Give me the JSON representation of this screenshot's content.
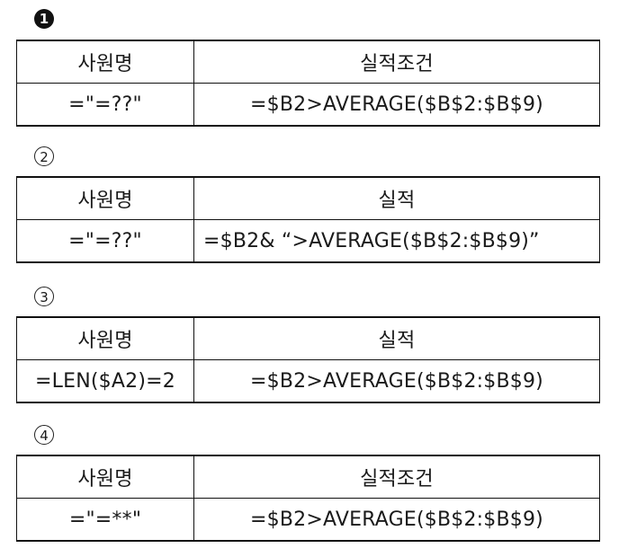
{
  "options": [
    {
      "marker": "1",
      "header": [
        "사원명",
        "실적조건"
      ],
      "row": [
        "=\"=??\"",
        "=$B2>AVERAGE($B$2:$B$9)"
      ]
    },
    {
      "marker": "2",
      "header": [
        "사원명",
        "실적"
      ],
      "row": [
        "=\"=??\"",
        "=$B2& “>AVERAGE($B$2:$B$9)”"
      ]
    },
    {
      "marker": "3",
      "header": [
        "사원명",
        "실적"
      ],
      "row": [
        "=LEN($A2)=2",
        "=$B2>AVERAGE($B$2:$B$9)"
      ]
    },
    {
      "marker": "4",
      "header": [
        "사원명",
        "실적조건"
      ],
      "row": [
        "=\"=**\"",
        "=$B2>AVERAGE($B$2:$B$9)"
      ]
    }
  ]
}
